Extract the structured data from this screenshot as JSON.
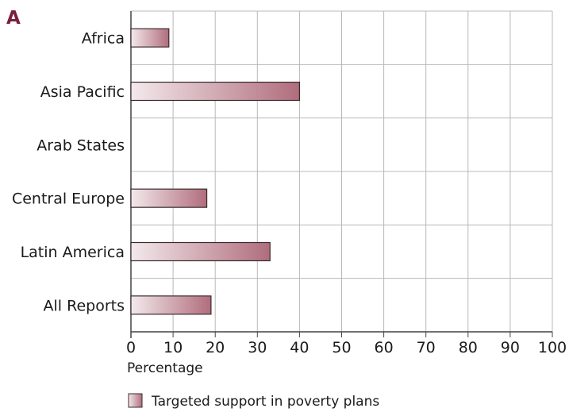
{
  "panel_label": "A",
  "chart_data": {
    "type": "bar",
    "orientation": "horizontal",
    "categories": [
      "Africa",
      "Asia Pacific",
      "Arab States",
      "Central Europe",
      "Latin America",
      "All Reports"
    ],
    "series": [
      {
        "name": "Targeted support in poverty plans",
        "values": [
          9,
          40,
          0,
          18,
          33,
          19
        ]
      }
    ],
    "xlabel": "Percentage",
    "ylabel": "",
    "xlim": [
      0,
      100
    ],
    "xticks": [
      0,
      10,
      20,
      30,
      40,
      50,
      60,
      70,
      80,
      90,
      100
    ],
    "grid": true,
    "legend_position": "bottom",
    "colors": {
      "bar_start": "#f3e9ec",
      "bar_end": "#b06d7c",
      "bar_border": "#3a2a2e",
      "grid": "#b8b8b8",
      "panel_letter": "#7a1f3d"
    }
  }
}
